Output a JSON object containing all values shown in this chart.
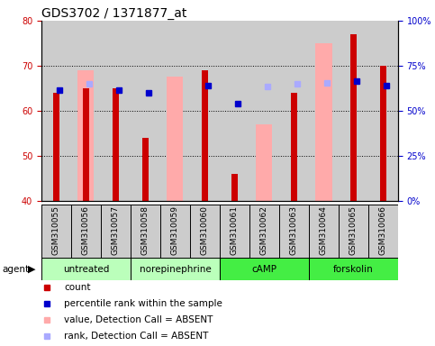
{
  "title": "GDS3702 / 1371877_at",
  "samples": [
    "GSM310055",
    "GSM310056",
    "GSM310057",
    "GSM310058",
    "GSM310059",
    "GSM310060",
    "GSM310061",
    "GSM310062",
    "GSM310063",
    "GSM310064",
    "GSM310065",
    "GSM310066"
  ],
  "count_values": [
    64,
    65,
    65,
    54,
    null,
    69,
    46,
    null,
    64,
    null,
    77,
    70
  ],
  "rank_values": [
    64.5,
    null,
    64.5,
    64,
    null,
    65.5,
    61.5,
    null,
    null,
    null,
    66.5,
    65.5
  ],
  "absent_value": [
    null,
    69,
    null,
    null,
    67.5,
    null,
    null,
    57,
    null,
    75,
    null,
    null
  ],
  "absent_rank": [
    null,
    65,
    null,
    null,
    null,
    null,
    null,
    63.5,
    65,
    65.5,
    null,
    null
  ],
  "ylim_left": [
    40,
    80
  ],
  "ylim_right": [
    0,
    100
  ],
  "yticks_left": [
    40,
    50,
    60,
    70,
    80
  ],
  "yticks_right": [
    0,
    25,
    50,
    75,
    100
  ],
  "ytick_labels_right": [
    "0%",
    "25%",
    "50%",
    "75%",
    "100%"
  ],
  "count_color": "#cc0000",
  "rank_color": "#0000cc",
  "absent_val_color": "#ffaaaa",
  "absent_rank_color": "#aaaaff",
  "col_bg_color": "#cccccc",
  "group_bg_light": "#bbffbb",
  "group_bg_dark": "#44ee44",
  "title_fontsize": 10,
  "tick_fontsize": 7,
  "label_fontsize": 6.5,
  "group_fontsize": 7.5,
  "legend_fontsize": 7.5,
  "groups": [
    {
      "label": "untreated",
      "start": 0,
      "end": 2,
      "light": true
    },
    {
      "label": "norepinephrine",
      "start": 3,
      "end": 5,
      "light": true
    },
    {
      "label": "cAMP",
      "start": 6,
      "end": 8,
      "light": false
    },
    {
      "label": "forskolin",
      "start": 9,
      "end": 11,
      "light": false
    }
  ]
}
